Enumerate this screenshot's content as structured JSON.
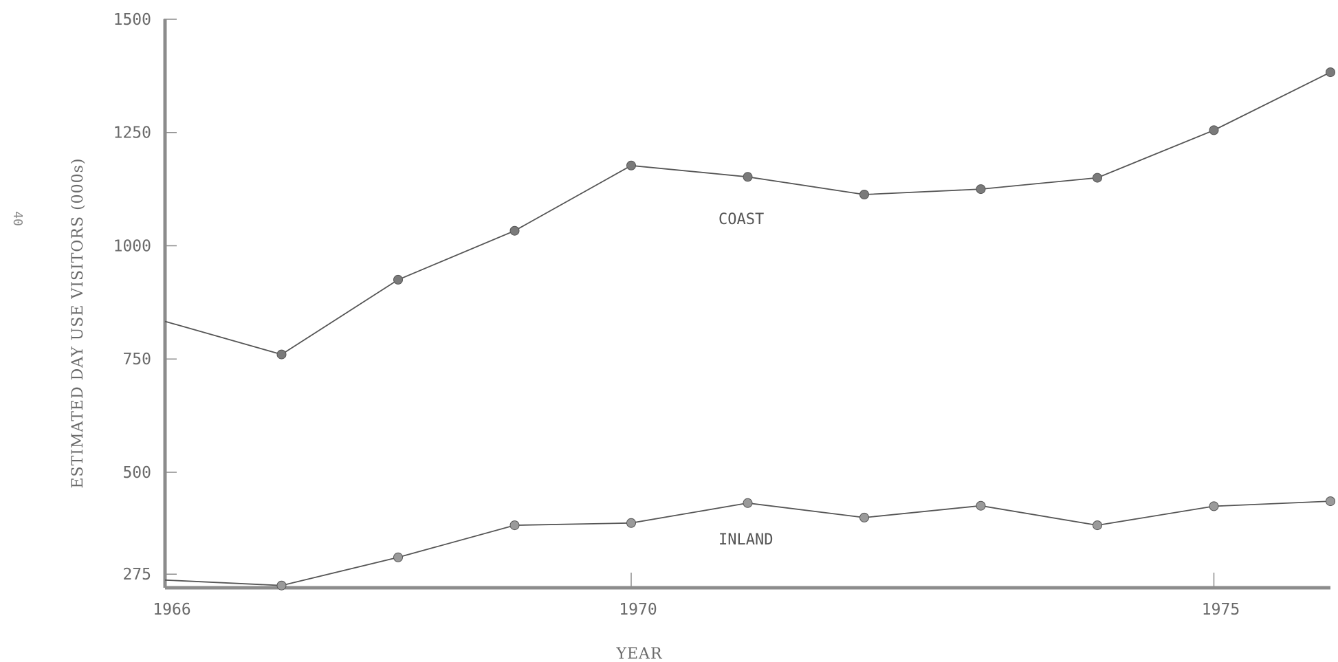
{
  "page_number": "40",
  "chart_data": {
    "type": "line",
    "title": "",
    "xlabel": "YEAR",
    "ylabel": "ESTIMATED DAY USE VISITORS (000s)",
    "x_ticks": [
      "1966",
      "1970",
      "1975"
    ],
    "y_ticks": [
      "275",
      "500",
      "750",
      "1000",
      "1250",
      "1500"
    ],
    "xlim": [
      1966,
      1976
    ],
    "ylim": [
      245,
      1500
    ],
    "grid": false,
    "legend": "none",
    "series": [
      {
        "name": "COAST",
        "color": "#555555",
        "x": [
          1966,
          1967,
          1968,
          1969,
          1970,
          1971,
          1972,
          1973,
          1974,
          1975,
          1976
        ],
        "y": [
          833,
          760,
          925,
          1033,
          1177,
          1152,
          1113,
          1125,
          1150,
          1255,
          1383
        ],
        "markers": [
          false,
          true,
          true,
          true,
          true,
          true,
          true,
          true,
          true,
          true,
          true
        ]
      },
      {
        "name": "INLAND",
        "color": "#555555",
        "x": [
          1966,
          1967,
          1968,
          1969,
          1970,
          1971,
          1972,
          1973,
          1974,
          1975,
          1976
        ],
        "y": [
          262,
          250,
          312,
          383,
          388,
          432,
          400,
          426,
          383,
          425,
          436
        ],
        "markers": [
          false,
          true,
          true,
          true,
          true,
          true,
          true,
          true,
          true,
          true,
          true
        ]
      }
    ]
  }
}
